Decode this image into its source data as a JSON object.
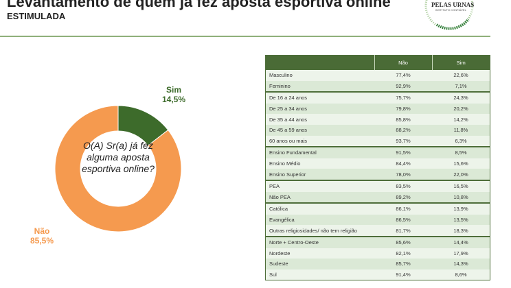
{
  "header": {
    "title": "Levantamento de quem já fez aposta esportiva online",
    "subtitle": "ESTIMULADA",
    "logo_text": "PELAS URNAS",
    "logo_subtext": "INSTITUTO CONFIÁVEL"
  },
  "chart_data": {
    "type": "pie",
    "donut": true,
    "center_text": "O(A) Sr(a) já fez alguma aposta esportiva online?",
    "slices": [
      {
        "label": "Sim",
        "value": 14.5,
        "display": "14,5%",
        "color": "#3d6b2b"
      },
      {
        "label": "Não",
        "value": 85.5,
        "display": "85,5%",
        "color": "#f59a4f"
      }
    ]
  },
  "table": {
    "columns": [
      "",
      "Não",
      "Sim"
    ],
    "rows": [
      {
        "label": "Masculino",
        "nao": "77,4%",
        "sim": "22,6%",
        "group_start": true
      },
      {
        "label": "Feminino",
        "nao": "92,9%",
        "sim": "7,1%"
      },
      {
        "label": "De 16 a 24 anos",
        "nao": "75,7%",
        "sim": "24,3%",
        "group_start": true
      },
      {
        "label": "De 25 a 34 anos",
        "nao": "79,8%",
        "sim": "20,2%"
      },
      {
        "label": "De 35 a 44 anos",
        "nao": "85,8%",
        "sim": "14,2%"
      },
      {
        "label": "De 45 a 59 anos",
        "nao": "88,2%",
        "sim": "11,8%"
      },
      {
        "label": "60 anos ou mais",
        "nao": "93,7%",
        "sim": "6,3%"
      },
      {
        "label": "Ensino Fundamental",
        "nao": "91,5%",
        "sim": "8,5%",
        "group_start": true
      },
      {
        "label": "Ensino Médio",
        "nao": "84,4%",
        "sim": "15,6%"
      },
      {
        "label": "Ensino Superior",
        "nao": "78,0%",
        "sim": "22,0%"
      },
      {
        "label": "PEA",
        "nao": "83,5%",
        "sim": "16,5%",
        "group_start": true
      },
      {
        "label": "Não PEA",
        "nao": "89,2%",
        "sim": "10,8%"
      },
      {
        "label": "Católica",
        "nao": "86,1%",
        "sim": "13,9%",
        "group_start": true
      },
      {
        "label": "Evangélica",
        "nao": "86,5%",
        "sim": "13,5%"
      },
      {
        "label": "Outras religiosidades/ não tem religião",
        "nao": "81,7%",
        "sim": "18,3%"
      },
      {
        "label": "Norte + Centro-Oeste",
        "nao": "85,6%",
        "sim": "14,4%",
        "group_start": true
      },
      {
        "label": "Nordeste",
        "nao": "82,1%",
        "sim": "17,9%"
      },
      {
        "label": "Sudeste",
        "nao": "85,7%",
        "sim": "14,3%"
      },
      {
        "label": "Sul",
        "nao": "91,4%",
        "sim": "8,6%"
      }
    ]
  }
}
